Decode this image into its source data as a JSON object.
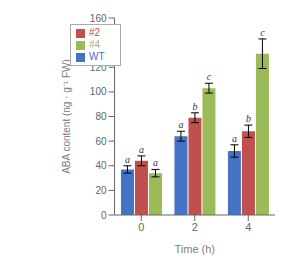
{
  "chart_data": {
    "type": "bar",
    "categories": [
      "0",
      "2",
      "4"
    ],
    "xlabel": "Time (h)",
    "ylabel": "ABA content (ng · g⁻¹ FW)",
    "series": [
      {
        "name": "WT",
        "color": "#4472C4",
        "values": [
          37,
          64,
          52
        ],
        "errors": [
          3,
          4,
          5
        ],
        "annotations": [
          "a",
          "a",
          "a"
        ]
      },
      {
        "name": "#2",
        "color": "#C0504D",
        "values": [
          44,
          79,
          68
        ],
        "errors": [
          4,
          4,
          5
        ],
        "annotations": [
          "a",
          "b",
          "b"
        ]
      },
      {
        "name": "#4",
        "color": "#9BBB59",
        "values": [
          34,
          103,
          131
        ],
        "errors": [
          3,
          4,
          12
        ],
        "annotations": [
          "a",
          "c",
          "c"
        ]
      }
    ],
    "ylim": [
      0,
      160
    ],
    "yticks": [
      0,
      20,
      40,
      60,
      80,
      100,
      120,
      140,
      160
    ],
    "legend": "upper left",
    "grid": false
  }
}
